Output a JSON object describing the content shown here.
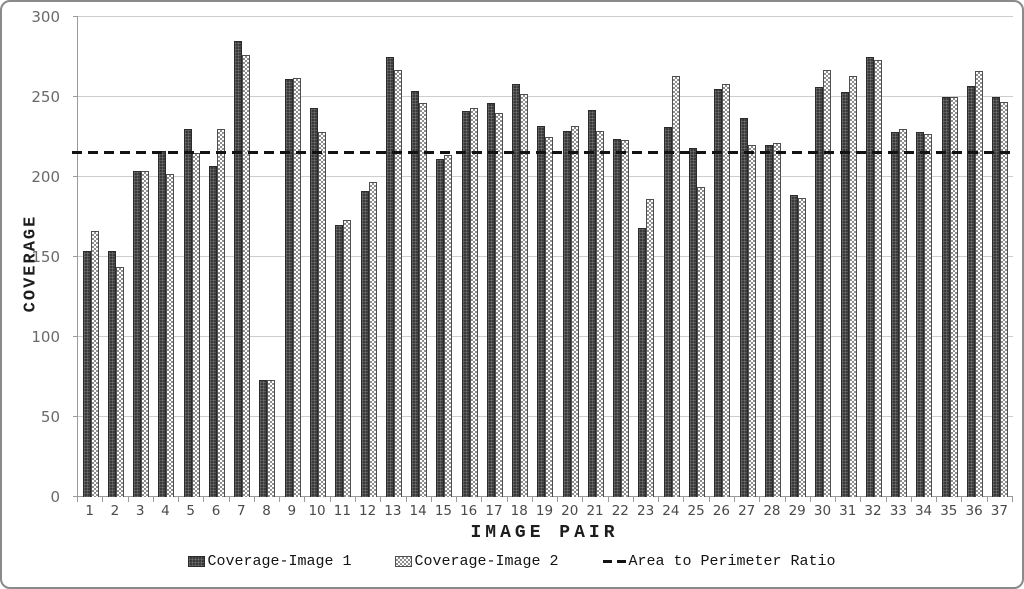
{
  "chart_data": {
    "type": "bar",
    "title": "",
    "xlabel": "IMAGE PAIR",
    "ylabel": "COVERAGE",
    "ylim": [
      0,
      300
    ],
    "yticks": [
      0,
      50,
      100,
      150,
      200,
      250,
      300
    ],
    "grid": true,
    "legend_position": "bottom",
    "categories": [
      "1",
      "2",
      "3",
      "4",
      "5",
      "6",
      "7",
      "8",
      "9",
      "10",
      "11",
      "12",
      "13",
      "14",
      "15",
      "16",
      "17",
      "18",
      "19",
      "20",
      "21",
      "22",
      "23",
      "24",
      "25",
      "26",
      "27",
      "28",
      "29",
      "30",
      "31",
      "32",
      "33",
      "34",
      "35",
      "36",
      "37"
    ],
    "series": [
      {
        "name": "Coverage-Image 1",
        "color": "#3a3a3a",
        "values": [
          154,
          154,
          204,
          216,
          230,
          207,
          285,
          73,
          261,
          243,
          170,
          191,
          275,
          254,
          211,
          241,
          246,
          258,
          232,
          229,
          242,
          224,
          168,
          231,
          218,
          255,
          237,
          220,
          189,
          256,
          253,
          275,
          228,
          228,
          250,
          257,
          250
        ]
      },
      {
        "name": "Coverage-Image 2",
        "color": "#8e8e8e",
        "pattern": "checker",
        "values": [
          166,
          144,
          204,
          202,
          215,
          230,
          276,
          73,
          262,
          228,
          173,
          197,
          267,
          246,
          214,
          243,
          240,
          252,
          225,
          232,
          229,
          223,
          186,
          263,
          194,
          258,
          220,
          221,
          187,
          267,
          263,
          273,
          230,
          227,
          250,
          266,
          247
        ]
      }
    ],
    "reference_line": {
      "label": "Area to Perimeter Ratio",
      "value": 215,
      "color": "#131313",
      "style": "dashed"
    }
  },
  "colors": {
    "background": "#ffffff",
    "border": "#8a8a8a",
    "gridline": "#cdcdcd",
    "axis": "#9a9a9a",
    "tick_text": "#6a6a6a"
  }
}
